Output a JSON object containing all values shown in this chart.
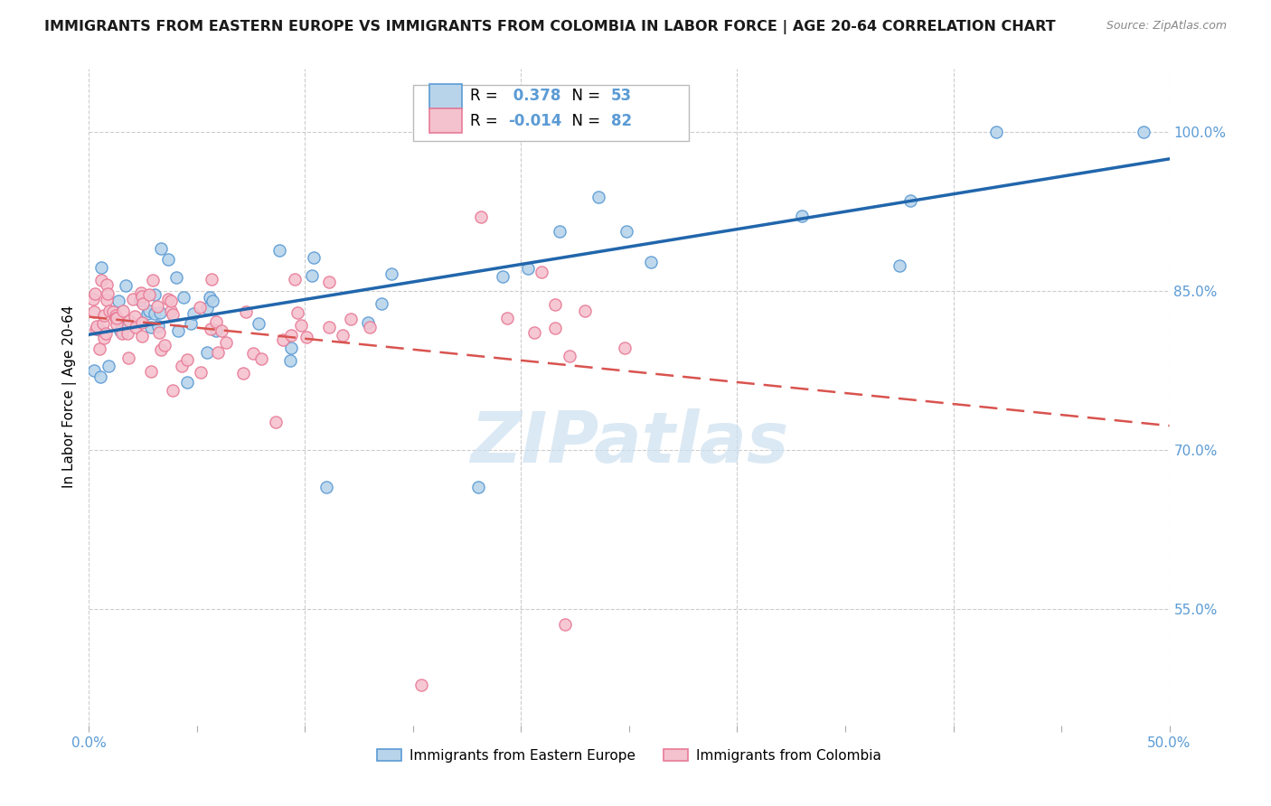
{
  "title": "IMMIGRANTS FROM EASTERN EUROPE VS IMMIGRANTS FROM COLOMBIA IN LABOR FORCE | AGE 20-64 CORRELATION CHART",
  "source": "Source: ZipAtlas.com",
  "ylabel": "In Labor Force | Age 20-64",
  "xmin": 0.0,
  "xmax": 0.5,
  "ymin": 0.44,
  "ymax": 1.06,
  "R_blue": 0.378,
  "N_blue": 53,
  "R_pink": -0.014,
  "N_pink": 82,
  "blue_fill": "#b8d4ea",
  "blue_edge": "#5b9bd5",
  "pink_fill": "#f4c2cf",
  "pink_edge": "#e87a96",
  "blue_line_color": "#2166ac",
  "pink_line_color": "#d9534f",
  "watermark_color": "#cce0f0",
  "grid_color": "#cccccc",
  "ytick_labels": [
    "100.0%",
    "85.0%",
    "70.0%",
    "55.0%"
  ],
  "ytick_values": [
    1.0,
    0.85,
    0.7,
    0.55
  ],
  "right_tick_color": "#5b9bd5",
  "legend_label_blue": "Immigrants from Eastern Europe",
  "legend_label_pink": "Immigrants from Colombia"
}
